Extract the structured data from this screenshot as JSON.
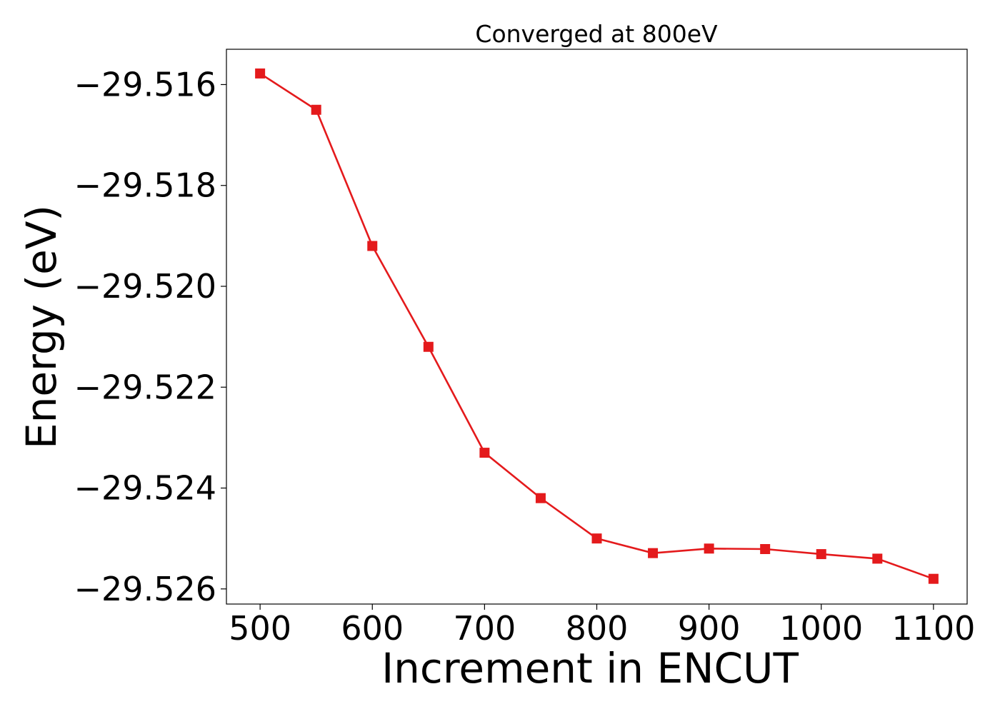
{
  "chart_data": {
    "type": "line",
    "title": "Converged at 800eV",
    "xlabel": "Increment in ENCUT",
    "ylabel": "Energy (eV)",
    "xlim": [
      470,
      1130
    ],
    "ylim": [
      -29.5263,
      -29.5153
    ],
    "x_ticks": [
      500,
      600,
      700,
      800,
      900,
      1000,
      1100
    ],
    "y_ticks": [
      -29.516,
      -29.518,
      -29.52,
      -29.522,
      -29.524,
      -29.526
    ],
    "y_tick_labels": [
      "−29.516",
      "−29.518",
      "−29.520",
      "−29.522",
      "−29.524",
      "−29.526"
    ],
    "grid": false,
    "series": [
      {
        "color": "#e41a1c",
        "marker": "square",
        "x": [
          500,
          550,
          600,
          650,
          700,
          750,
          800,
          850,
          900,
          950,
          1000,
          1050,
          1100
        ],
        "y": [
          -29.51578,
          -29.5165,
          -29.5192,
          -29.5212,
          -29.5233,
          -29.5242,
          -29.525,
          -29.52529,
          -29.5252,
          -29.52521,
          -29.52531,
          -29.5254,
          -29.5258
        ]
      }
    ]
  }
}
